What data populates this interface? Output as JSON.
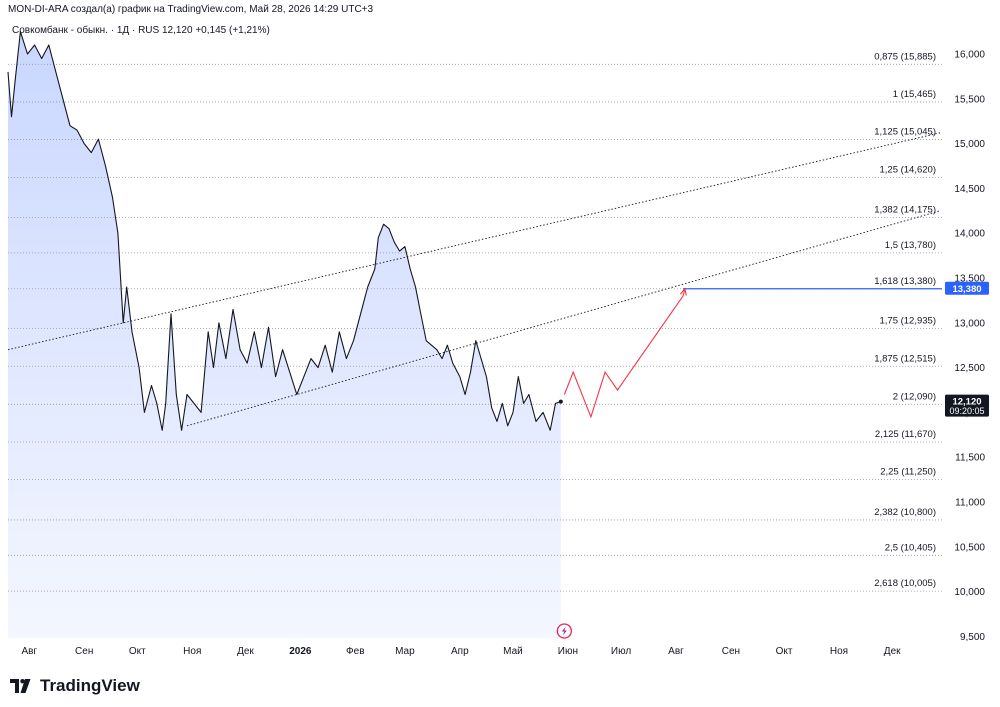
{
  "header": {
    "author_line": "MON-DI-ARA создал(а) график на TradingView.com, Май 28, 2026 14:29 UTC+3"
  },
  "legend": {
    "symbol": "Совкомбанк - обыкн.",
    "sep1": "·",
    "interval": "1Д",
    "sep2": "·",
    "exchange": "RUS",
    "price": "12,120",
    "change": "+0,145 (+1,21%)"
  },
  "brand": {
    "name": "TradingView"
  },
  "price_tag": {
    "value": "12,120",
    "time": "09:20:05",
    "bg": "#131722"
  },
  "target_tag": {
    "value": "13,380",
    "bg": "#2962ff"
  },
  "colors": {
    "line": "#131722",
    "fill_top": "#c6d4ff",
    "fill_bottom": "#f3f6ff",
    "fib_line": "#9598a1",
    "target_line": "#2962ff",
    "projection": "#f23645",
    "grid_text": "#131722"
  },
  "chart_data": {
    "type": "line",
    "symbol": "Совкомбанк - обыкн.",
    "interval": "1Д",
    "x_axis_labels": [
      "Авг",
      "Сен",
      "Окт",
      "Ноя",
      "Дек",
      "2026",
      "Фев",
      "Мар",
      "Апр",
      "Май",
      "Июн",
      "Июл",
      "Авг",
      "Сен",
      "Окт",
      "Ноя",
      "Дек"
    ],
    "y_axis_labels": [
      "16,000",
      "15,500",
      "15,000",
      "14,500",
      "14,000",
      "13,500",
      "13,000",
      "12,500",
      "12,000",
      "11,500",
      "11,000",
      "10,500",
      "10,000",
      "9,500"
    ],
    "ylim": [
      9.45,
      16.3
    ],
    "series": [
      {
        "values": [
          {
            "x": "2025-07-20",
            "y": 15.8
          },
          {
            "x": "2025-07-22",
            "y": 15.3
          },
          {
            "x": "2025-07-24",
            "y": 15.7
          },
          {
            "x": "2025-07-27",
            "y": 16.25
          },
          {
            "x": "2025-07-31",
            "y": 16.0
          },
          {
            "x": "2025-08-04",
            "y": 16.1
          },
          {
            "x": "2025-08-08",
            "y": 15.95
          },
          {
            "x": "2025-08-12",
            "y": 16.1
          },
          {
            "x": "2025-08-16",
            "y": 15.8
          },
          {
            "x": "2025-08-20",
            "y": 15.5
          },
          {
            "x": "2025-08-24",
            "y": 15.2
          },
          {
            "x": "2025-08-28",
            "y": 15.15
          },
          {
            "x": "2025-09-01",
            "y": 15.0
          },
          {
            "x": "2025-09-05",
            "y": 14.9
          },
          {
            "x": "2025-09-09",
            "y": 15.05
          },
          {
            "x": "2025-09-13",
            "y": 14.75
          },
          {
            "x": "2025-09-17",
            "y": 14.4
          },
          {
            "x": "2025-09-20",
            "y": 14.0
          },
          {
            "x": "2025-09-23",
            "y": 13.0
          },
          {
            "x": "2025-09-25",
            "y": 13.4
          },
          {
            "x": "2025-09-28",
            "y": 12.9
          },
          {
            "x": "2025-10-02",
            "y": 12.5
          },
          {
            "x": "2025-10-05",
            "y": 12.0
          },
          {
            "x": "2025-10-09",
            "y": 12.3
          },
          {
            "x": "2025-10-12",
            "y": 12.1
          },
          {
            "x": "2025-10-15",
            "y": 11.8
          },
          {
            "x": "2025-10-17",
            "y": 12.1
          },
          {
            "x": "2025-10-20",
            "y": 13.1
          },
          {
            "x": "2025-10-23",
            "y": 12.2
          },
          {
            "x": "2025-10-26",
            "y": 11.8
          },
          {
            "x": "2025-10-29",
            "y": 12.2
          },
          {
            "x": "2025-11-02",
            "y": 12.1
          },
          {
            "x": "2025-11-06",
            "y": 12.0
          },
          {
            "x": "2025-11-10",
            "y": 12.9
          },
          {
            "x": "2025-11-13",
            "y": 12.5
          },
          {
            "x": "2025-11-16",
            "y": 13.0
          },
          {
            "x": "2025-11-20",
            "y": 12.6
          },
          {
            "x": "2025-11-24",
            "y": 13.15
          },
          {
            "x": "2025-11-28",
            "y": 12.7
          },
          {
            "x": "2025-12-02",
            "y": 12.55
          },
          {
            "x": "2025-12-06",
            "y": 12.9
          },
          {
            "x": "2025-12-10",
            "y": 12.5
          },
          {
            "x": "2025-12-14",
            "y": 12.95
          },
          {
            "x": "2025-12-18",
            "y": 12.4
          },
          {
            "x": "2025-12-22",
            "y": 12.7
          },
          {
            "x": "2025-12-26",
            "y": 12.45
          },
          {
            "x": "2025-12-30",
            "y": 12.2
          },
          {
            "x": "2026-01-03",
            "y": 12.4
          },
          {
            "x": "2026-01-07",
            "y": 12.6
          },
          {
            "x": "2026-01-11",
            "y": 12.5
          },
          {
            "x": "2026-01-15",
            "y": 12.75
          },
          {
            "x": "2026-01-19",
            "y": 12.45
          },
          {
            "x": "2026-01-23",
            "y": 12.9
          },
          {
            "x": "2026-01-27",
            "y": 12.6
          },
          {
            "x": "2026-01-31",
            "y": 12.8
          },
          {
            "x": "2026-02-04",
            "y": 13.1
          },
          {
            "x": "2026-02-08",
            "y": 13.4
          },
          {
            "x": "2026-02-12",
            "y": 13.6
          },
          {
            "x": "2026-02-14",
            "y": 13.95
          },
          {
            "x": "2026-02-17",
            "y": 14.1
          },
          {
            "x": "2026-02-20",
            "y": 14.05
          },
          {
            "x": "2026-02-23",
            "y": 13.9
          },
          {
            "x": "2026-02-26",
            "y": 13.8
          },
          {
            "x": "2026-03-01",
            "y": 13.85
          },
          {
            "x": "2026-03-04",
            "y": 13.6
          },
          {
            "x": "2026-03-07",
            "y": 13.4
          },
          {
            "x": "2026-03-10",
            "y": 13.1
          },
          {
            "x": "2026-03-13",
            "y": 12.8
          },
          {
            "x": "2026-03-16",
            "y": 12.75
          },
          {
            "x": "2026-03-19",
            "y": 12.7
          },
          {
            "x": "2026-03-22",
            "y": 12.6
          },
          {
            "x": "2026-03-25",
            "y": 12.75
          },
          {
            "x": "2026-03-28",
            "y": 12.55
          },
          {
            "x": "2026-04-01",
            "y": 12.4
          },
          {
            "x": "2026-04-04",
            "y": 12.2
          },
          {
            "x": "2026-04-07",
            "y": 12.45
          },
          {
            "x": "2026-04-10",
            "y": 12.8
          },
          {
            "x": "2026-04-13",
            "y": 12.6
          },
          {
            "x": "2026-04-16",
            "y": 12.4
          },
          {
            "x": "2026-04-19",
            "y": 12.05
          },
          {
            "x": "2026-04-22",
            "y": 11.9
          },
          {
            "x": "2026-04-25",
            "y": 12.1
          },
          {
            "x": "2026-04-28",
            "y": 11.85
          },
          {
            "x": "2026-05-01",
            "y": 12.0
          },
          {
            "x": "2026-05-04",
            "y": 12.4
          },
          {
            "x": "2026-05-07",
            "y": 12.1
          },
          {
            "x": "2026-05-10",
            "y": 12.2
          },
          {
            "x": "2026-05-14",
            "y": 11.9
          },
          {
            "x": "2026-05-18",
            "y": 12.0
          },
          {
            "x": "2026-05-22",
            "y": 11.8
          },
          {
            "x": "2026-05-25",
            "y": 12.1
          },
          {
            "x": "2026-05-28",
            "y": 12.12
          }
        ]
      }
    ],
    "fib_levels": [
      {
        "label": "0,875 (15,885)",
        "value": 15.885
      },
      {
        "label": "1 (15,465)",
        "value": 15.465
      },
      {
        "label": "1,125 (15,045)",
        "value": 15.045
      },
      {
        "label": "1,25 (14,620)",
        "value": 14.62
      },
      {
        "label": "1,382 (14,175)",
        "value": 14.175
      },
      {
        "label": "1,5 (13,780)",
        "value": 13.78
      },
      {
        "label": "1,618 (13,380)",
        "value": 13.38
      },
      {
        "label": "1,75 (12,935)",
        "value": 12.935
      },
      {
        "label": "1,875 (12,515)",
        "value": 12.515
      },
      {
        "label": "2 (12,090)",
        "value": 12.09
      },
      {
        "label": "2,125 (11,670)",
        "value": 11.67
      },
      {
        "label": "2,25 (11,250)",
        "value": 11.25
      },
      {
        "label": "2,382 (10,800)",
        "value": 10.8
      },
      {
        "label": "2,5 (10,405)",
        "value": 10.405
      },
      {
        "label": "2,618 (10,005)",
        "value": 10.005
      }
    ],
    "trend_lines": [
      {
        "from": {
          "x": "2025-07-20",
          "y": 12.7
        },
        "to": {
          "x": "2026-12-28",
          "y": 15.12
        }
      },
      {
        "from": {
          "x": "2025-10-29",
          "y": 11.85
        },
        "to": {
          "x": "2026-12-28",
          "y": 14.25
        }
      }
    ],
    "target_line": {
      "from": {
        "x": "2026-08-05",
        "y": 13.38
      },
      "value": 13.38
    },
    "projection_path": [
      {
        "x": "2026-05-30",
        "y": 12.2
      },
      {
        "x": "2026-06-04",
        "y": 12.45
      },
      {
        "x": "2026-06-14",
        "y": 11.95
      },
      {
        "x": "2026-06-22",
        "y": 12.45
      },
      {
        "x": "2026-06-29",
        "y": 12.25
      },
      {
        "x": "2026-08-05",
        "y": 13.3
      },
      {
        "x": "2026-08-06",
        "y": 13.38
      }
    ]
  }
}
